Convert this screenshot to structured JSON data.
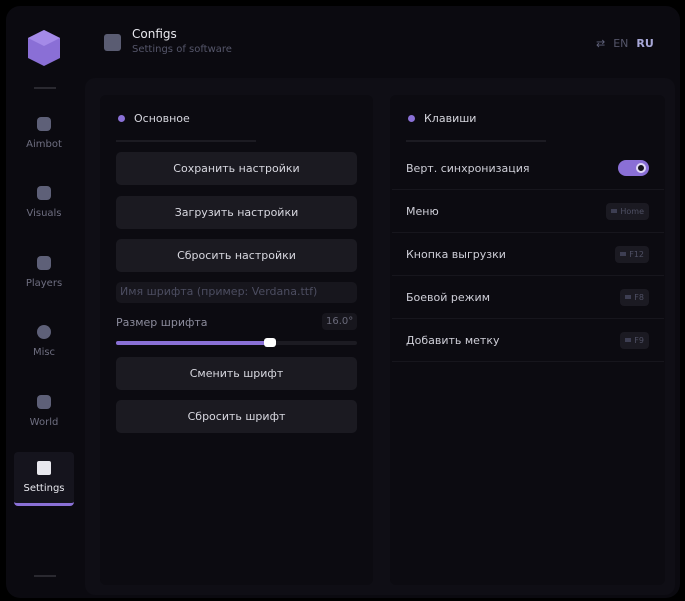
{
  "header": {
    "title": "Configs",
    "subtitle": "Settings of software",
    "lang_en": "EN",
    "lang_ru": "RU"
  },
  "sidebar": {
    "items": [
      {
        "label": "Aimbot",
        "icon": "skull-icon"
      },
      {
        "label": "Visuals",
        "icon": "camera-icon"
      },
      {
        "label": "Players",
        "icon": "players-icon"
      },
      {
        "label": "Misc",
        "icon": "chat-icon"
      },
      {
        "label": "World",
        "icon": "briefcase-icon"
      },
      {
        "label": "Settings",
        "icon": "list-icon",
        "active": true
      }
    ]
  },
  "main": {
    "title": "Основное",
    "save": "Сохранить настройки",
    "load": "Загрузить настройки",
    "reset": "Сбросить настройки",
    "font_placeholder": "Имя шрифта (пример: Verdana.ttf)",
    "font_size_label": "Размер шрифта",
    "font_size_value": "16.0°",
    "font_size_fraction": 0.64,
    "change_font": "Сменить шрифт",
    "reset_font": "Сбросить шрифт"
  },
  "keys": {
    "title": "Клавиши",
    "vsync": "Верт. синхронизация",
    "vsync_on": true,
    "menu": "Меню",
    "menu_key": "Home",
    "unload": "Кнопка выгрузки",
    "unload_key": "F12",
    "combat": "Боевой режим",
    "combat_key": "F8",
    "mark": "Добавить метку",
    "mark_key": "F9"
  },
  "colors": {
    "accent": "#8a70d6",
    "bg": "#0b0a10"
  }
}
